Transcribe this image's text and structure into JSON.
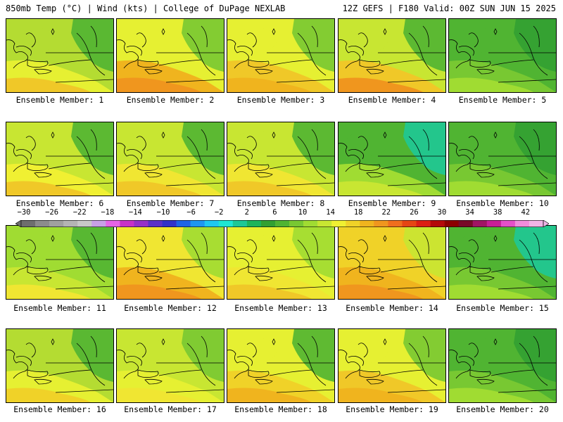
{
  "header": {
    "left_title": "850mb Temp (°C) | Wind (kts) | College of DuPage NEXLAB",
    "right_title": "12Z GEFS | F180 Valid: 00Z SUN JUN 15 2025"
  },
  "panels": [
    {
      "label": "Ensemble Member: 1"
    },
    {
      "label": "Ensemble Member: 2"
    },
    {
      "label": "Ensemble Member: 3"
    },
    {
      "label": "Ensemble Member: 4"
    },
    {
      "label": "Ensemble Member: 5"
    },
    {
      "label": "Ensemble Member: 6"
    },
    {
      "label": "Ensemble Member: 7"
    },
    {
      "label": "Ensemble Member: 8"
    },
    {
      "label": "Ensemble Member: 9"
    },
    {
      "label": "Ensemble Member: 10"
    },
    {
      "label": "Ensemble Member: 11"
    },
    {
      "label": "Ensemble Member: 12"
    },
    {
      "label": "Ensemble Member: 13"
    },
    {
      "label": "Ensemble Member: 14"
    },
    {
      "label": "Ensemble Member: 15"
    },
    {
      "label": "Ensemble Member: 16"
    },
    {
      "label": "Ensemble Member: 17"
    },
    {
      "label": "Ensemble Member: 18"
    },
    {
      "label": "Ensemble Member: 19"
    },
    {
      "label": "Ensemble Member: 20"
    }
  ],
  "colorbar": {
    "ticks": [
      "−30",
      "−26",
      "−22",
      "−18",
      "−14",
      "−10",
      "−6",
      "−2",
      "2",
      "6",
      "10",
      "14",
      "18",
      "22",
      "26",
      "30",
      "34",
      "38",
      "42"
    ],
    "colors": [
      "#6e6e6e",
      "#8c8c8c",
      "#a0a0a0",
      "#b4b4b4",
      "#c8c8c8",
      "#c8a0e6",
      "#e664e6",
      "#c832c8",
      "#9632c8",
      "#5a32c8",
      "#3232c8",
      "#1e64e6",
      "#1e96f0",
      "#1ec8f0",
      "#1ee6d2",
      "#1ec896",
      "#1eb45a",
      "#32a032",
      "#50b432",
      "#78c832",
      "#a0dc32",
      "#c8e632",
      "#f0f032",
      "#f0d228",
      "#f0b41e",
      "#f0961e",
      "#f06e1e",
      "#e64614",
      "#dc1e14",
      "#b40a0a",
      "#8c0000",
      "#780a28",
      "#a01464",
      "#c81e96",
      "#e650c8",
      "#f08cdc",
      "#f0b4e6"
    ]
  }
}
